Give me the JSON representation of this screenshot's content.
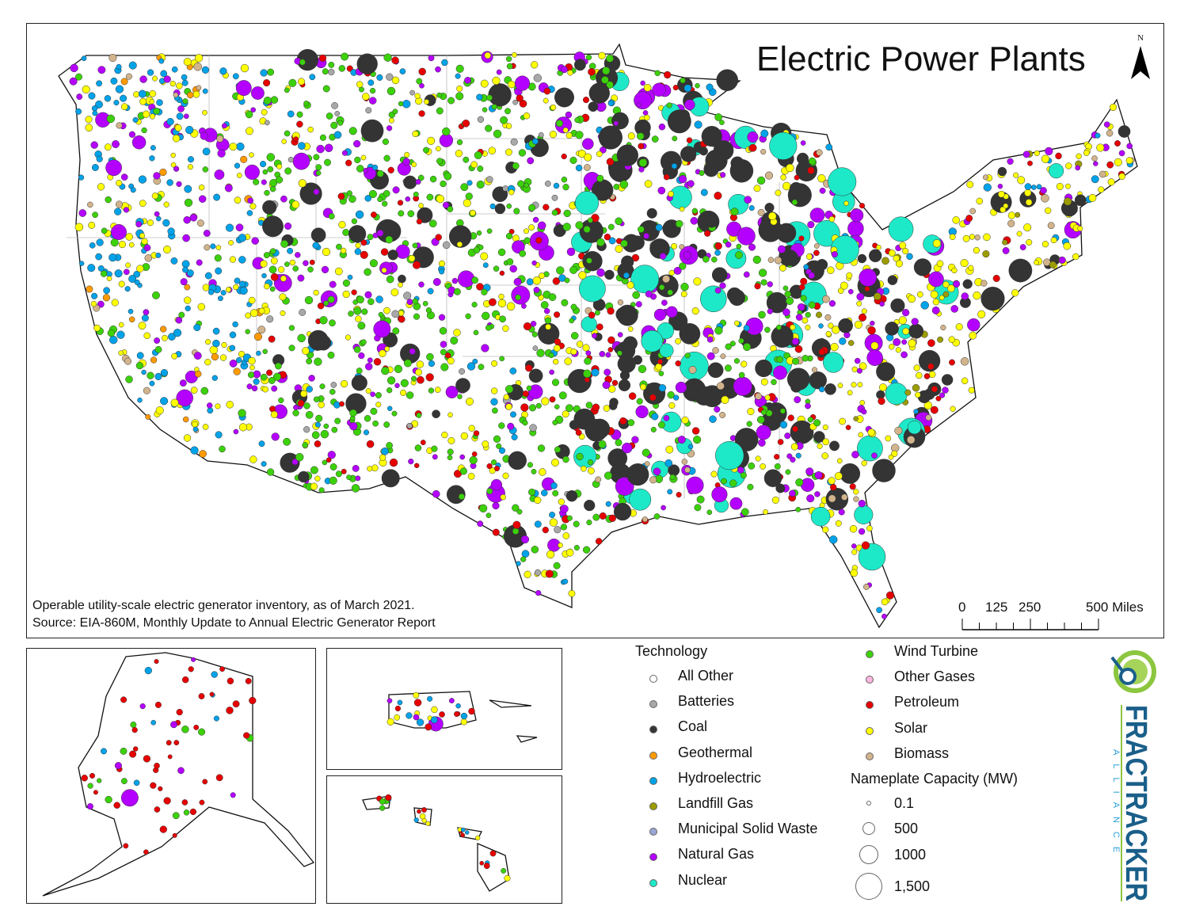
{
  "title": "Electric Power Plants",
  "north_label": "N",
  "notes": {
    "line1": "Operable utility-scale electric generator inventory, as of March 2021.",
    "line2": "Source: EIA-860M, Monthly Update to Annual Electric Generator Report"
  },
  "scale_bar": {
    "labels": [
      "0",
      "125",
      "250",
      "500 Miles"
    ]
  },
  "legend": {
    "technology_title": "Technology",
    "technologies": [
      {
        "label": "All Other",
        "color": "#ffffff"
      },
      {
        "label": "Batteries",
        "color": "#a8a8a8"
      },
      {
        "label": "Coal",
        "color": "#343434"
      },
      {
        "label": "Geothermal",
        "color": "#ff9a00"
      },
      {
        "label": "Hydroelectric",
        "color": "#00a2e8"
      },
      {
        "label": "Landfill Gas",
        "color": "#9c9c00"
      },
      {
        "label": "Municipal Solid Waste",
        "color": "#9aa6d4"
      },
      {
        "label": "Natural Gas",
        "color": "#b400ff"
      },
      {
        "label": "Nuclear",
        "color": "#1de9c8"
      },
      {
        "label": "Wind Turbine",
        "color": "#3cd10a"
      },
      {
        "label": "Other Gases",
        "color": "#ffb6e0"
      },
      {
        "label": "Petroleum",
        "color": "#e60000"
      },
      {
        "label": "Solar",
        "color": "#ffff00"
      },
      {
        "label": "Biomass",
        "color": "#d2b48c"
      }
    ],
    "capacity_title": "Nameplate Capacity (MW)",
    "capacities": [
      {
        "label": "0.1",
        "value": 0.1
      },
      {
        "label": "500",
        "value": 500
      },
      {
        "label": "1000",
        "value": 1000
      },
      {
        "label": "1,500",
        "value": 1500
      }
    ]
  },
  "logo": {
    "name": "FRACTRACKER",
    "sub": "ALLIANCE",
    "colors": {
      "blue": "#1a5f8a",
      "green": "#8cc63f"
    }
  },
  "insets": [
    "Alaska",
    "Puerto Rico",
    "Hawaii"
  ]
}
